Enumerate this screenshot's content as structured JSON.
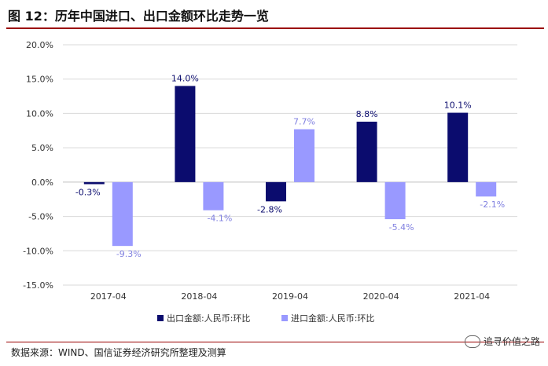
{
  "header": {
    "title": "图 12：历年中国进口、出口金额环比走势一览"
  },
  "footer": {
    "source": "数据来源：WIND、国信证券经济研究所整理及测算",
    "watermark": "追寻价值之路"
  },
  "chart_data": {
    "type": "bar",
    "categories": [
      "2017-04",
      "2018-04",
      "2019-04",
      "2020-04",
      "2021-04"
    ],
    "series": [
      {
        "name": "出口金额:人民币:环比",
        "values": [
          -0.3,
          14.0,
          -2.8,
          8.8,
          10.1
        ],
        "color": "#0b0c6e",
        "label_color": "#0b0c6e"
      },
      {
        "name": "进口金额:人民币:环比",
        "values": [
          -9.3,
          -4.1,
          7.7,
          -5.4,
          -2.1
        ],
        "color": "#9999ff",
        "label_color": "#8080e0"
      }
    ],
    "data_labels": [
      [
        "-0.3%",
        "14.0%",
        "-2.8%",
        "8.8%",
        "10.1%"
      ],
      [
        "-9.3%",
        "-4.1%",
        "7.7%",
        "-5.4%",
        "-2.1%"
      ]
    ],
    "ylim": [
      -15,
      20
    ],
    "yticks": [
      -15,
      -10,
      -5,
      0,
      5,
      10,
      15,
      20
    ],
    "ytick_labels": [
      "-15.0%",
      "-10.0%",
      "-5.0%",
      "0.0%",
      "5.0%",
      "10.0%",
      "15.0%",
      "20.0%"
    ],
    "grid": true,
    "legend_position": "bottom",
    "xlabel": "",
    "ylabel": ""
  }
}
